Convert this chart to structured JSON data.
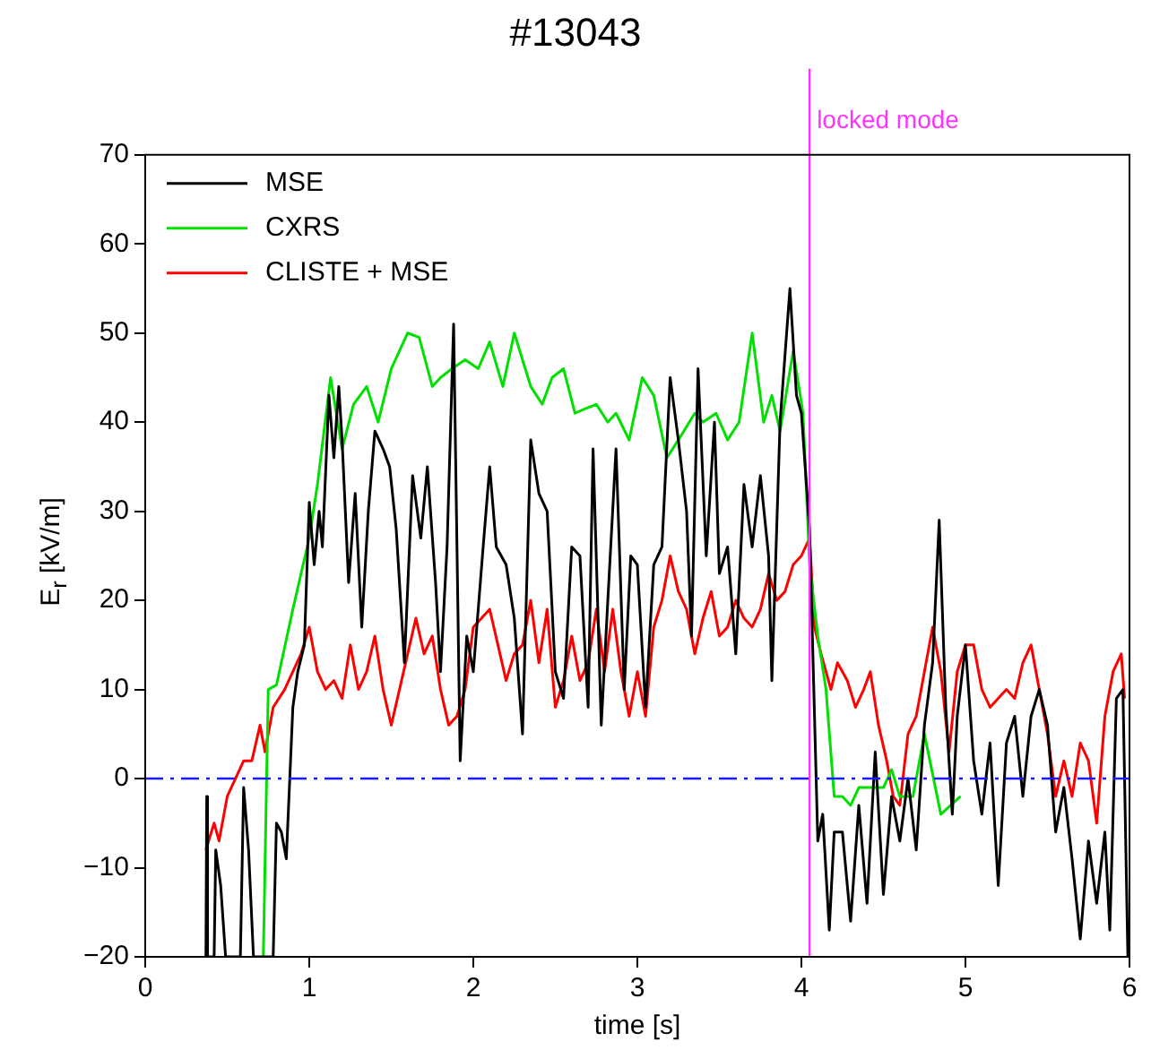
{
  "chart_data": {
    "type": "line",
    "title": "#13043",
    "xlabel": "time [s]",
    "ylabel": "E$_{r}$ [kV/m]",
    "xlim": [
      0,
      6
    ],
    "xticks": [
      0,
      1,
      2,
      3,
      4,
      5,
      6
    ],
    "ylim": [
      -20,
      70
    ],
    "yticks": [
      -20,
      -10,
      0,
      10,
      20,
      30,
      40,
      50,
      60,
      70
    ],
    "grid": false,
    "legend": "top left",
    "marker": "none",
    "line_style": "solid",
    "ref_lines": [
      {
        "axis": "x",
        "value": 4.05,
        "label": "locked mode",
        "color": "#ff33ff",
        "line_style": "solid"
      },
      {
        "axis": "y",
        "value": 0,
        "label": null,
        "color": "#1a1aff",
        "line_style": "dashdot"
      }
    ],
    "series": [
      {
        "name": "MSE",
        "color": "#000000",
        "x": [
          0.37,
          0.375,
          0.38,
          0.42,
          0.43,
          0.46,
          0.49,
          0.58,
          0.6,
          0.63,
          0.66,
          0.7,
          0.78,
          0.8,
          0.83,
          0.86,
          0.9,
          0.93,
          0.97,
          1.0,
          1.03,
          1.06,
          1.08,
          1.12,
          1.15,
          1.18,
          1.2,
          1.24,
          1.28,
          1.32,
          1.36,
          1.4,
          1.45,
          1.49,
          1.53,
          1.58,
          1.63,
          1.68,
          1.72,
          1.77,
          1.8,
          1.84,
          1.88,
          1.92,
          1.96,
          2.0,
          2.06,
          2.1,
          2.14,
          2.2,
          2.25,
          2.3,
          2.35,
          2.4,
          2.45,
          2.5,
          2.55,
          2.6,
          2.65,
          2.7,
          2.73,
          2.78,
          2.82,
          2.87,
          2.92,
          2.96,
          3.0,
          3.05,
          3.1,
          3.15,
          3.2,
          3.25,
          3.3,
          3.33,
          3.37,
          3.42,
          3.47,
          3.5,
          3.55,
          3.6,
          3.65,
          3.7,
          3.75,
          3.8,
          3.82,
          3.87,
          3.93,
          3.97,
          4.0,
          4.05,
          4.1,
          4.13,
          4.17,
          4.2,
          4.25,
          4.3,
          4.35,
          4.4,
          4.45,
          4.5,
          4.55,
          4.6,
          4.65,
          4.7,
          4.75,
          4.8,
          4.84,
          4.88,
          4.92,
          4.95,
          5.0,
          5.05,
          5.1,
          5.15,
          5.2,
          5.25,
          5.3,
          5.35,
          5.4,
          5.45,
          5.5,
          5.55,
          5.6,
          5.65,
          5.7,
          5.75,
          5.8,
          5.85,
          5.88,
          5.92,
          5.96,
          5.99
        ],
        "values": [
          -20,
          -2,
          -20,
          -20,
          -8,
          -12,
          -20,
          -20,
          -1,
          -8,
          -20,
          -20,
          -20,
          -5,
          -6,
          -9,
          8,
          12,
          15,
          31,
          24,
          30,
          26,
          43,
          36,
          44,
          38,
          22,
          32,
          17,
          30,
          39,
          37,
          35,
          28,
          13,
          34,
          27,
          35,
          22,
          12,
          26,
          51,
          2,
          16,
          12,
          26,
          35,
          26,
          24,
          18,
          5,
          38,
          32,
          30,
          12,
          9,
          26,
          25,
          8,
          37,
          6,
          20,
          37,
          10,
          25,
          24,
          8,
          24,
          26,
          45,
          38,
          30,
          16,
          46,
          25,
          40,
          23,
          26,
          14,
          33,
          26,
          34,
          25,
          11,
          40,
          55,
          43,
          41,
          28,
          -7,
          -4,
          -17,
          -6,
          -6,
          -16,
          -3,
          -14,
          3,
          -13,
          -2,
          -7,
          0,
          -8,
          6,
          13,
          29,
          8,
          -4,
          7,
          15,
          2,
          -4,
          4,
          -12,
          4,
          7,
          -2,
          7,
          10,
          6,
          -6,
          -1,
          -9,
          -18,
          -7,
          -14,
          -6,
          -17,
          9,
          10,
          -20
        ]
      },
      {
        "name": "CXRS",
        "color": "#00e000",
        "x": [
          0.72,
          0.75,
          0.8,
          0.9,
          1.0,
          1.05,
          1.13,
          1.2,
          1.27,
          1.35,
          1.42,
          1.5,
          1.6,
          1.67,
          1.75,
          1.8,
          1.87,
          1.95,
          2.03,
          2.1,
          2.18,
          2.25,
          2.35,
          2.42,
          2.48,
          2.55,
          2.62,
          2.68,
          2.75,
          2.82,
          2.87,
          2.95,
          3.03,
          3.1,
          3.18,
          3.25,
          3.35,
          3.4,
          3.48,
          3.55,
          3.62,
          3.7,
          3.77,
          3.82,
          3.87,
          3.95,
          4.01,
          4.05,
          4.1,
          4.15,
          4.2,
          4.25,
          4.3,
          4.35,
          4.4,
          4.5,
          4.55,
          4.6,
          4.68,
          4.75,
          4.85,
          4.97
        ],
        "values": [
          -20,
          10,
          10.5,
          19,
          27,
          33,
          45,
          37,
          42,
          44,
          40,
          46,
          50,
          49.5,
          44,
          45,
          46,
          47,
          46,
          49,
          44,
          50,
          44,
          42,
          45,
          46,
          41,
          41.5,
          42,
          40,
          41,
          38,
          45,
          43,
          36,
          38,
          41,
          40,
          41,
          38,
          40,
          50,
          40,
          43,
          39,
          48,
          41,
          24,
          16,
          10,
          -2,
          -2,
          -3,
          -1,
          -1,
          -1,
          1,
          -2,
          -2,
          5,
          -4,
          -2
        ]
      },
      {
        "name": "CLISTE + MSE",
        "color": "#ff0000",
        "x": [
          0.37,
          0.42,
          0.45,
          0.5,
          0.55,
          0.6,
          0.65,
          0.7,
          0.73,
          0.78,
          0.85,
          0.9,
          0.95,
          1.0,
          1.05,
          1.1,
          1.15,
          1.2,
          1.25,
          1.3,
          1.35,
          1.4,
          1.45,
          1.5,
          1.55,
          1.6,
          1.65,
          1.7,
          1.75,
          1.8,
          1.85,
          1.9,
          1.95,
          2.0,
          2.05,
          2.1,
          2.15,
          2.2,
          2.25,
          2.3,
          2.35,
          2.4,
          2.45,
          2.5,
          2.55,
          2.6,
          2.65,
          2.7,
          2.75,
          2.8,
          2.85,
          2.9,
          2.95,
          3.0,
          3.05,
          3.1,
          3.15,
          3.2,
          3.25,
          3.3,
          3.35,
          3.4,
          3.45,
          3.5,
          3.55,
          3.6,
          3.65,
          3.7,
          3.75,
          3.8,
          3.85,
          3.9,
          3.95,
          4.0,
          4.05,
          4.08,
          4.12,
          4.18,
          4.22,
          4.28,
          4.33,
          4.38,
          4.42,
          4.47,
          4.52,
          4.56,
          4.6,
          4.65,
          4.7,
          4.75,
          4.8,
          4.85,
          4.9,
          4.95,
          5.0,
          5.05,
          5.1,
          5.15,
          5.2,
          5.25,
          5.3,
          5.35,
          5.4,
          5.45,
          5.5,
          5.55,
          5.6,
          5.65,
          5.7,
          5.75,
          5.8,
          5.85,
          5.9,
          5.95,
          5.97
        ],
        "values": [
          -8,
          -5,
          -7,
          -2,
          0,
          2,
          2,
          6,
          3,
          8,
          10,
          12,
          14,
          17,
          12,
          10,
          11,
          9,
          15,
          10,
          12,
          16,
          10,
          6,
          10,
          14,
          18,
          14,
          16,
          10,
          6,
          7,
          10,
          17,
          18,
          19,
          15,
          11,
          14,
          15,
          20,
          13,
          19,
          8,
          11,
          16,
          11,
          13,
          19,
          12,
          19,
          12,
          7,
          12,
          7,
          17,
          20,
          25,
          21,
          19,
          14,
          18,
          21,
          16,
          17,
          20,
          18,
          17,
          19,
          23,
          20,
          21,
          24,
          25,
          27,
          17,
          14,
          10,
          13,
          11,
          8,
          10,
          12,
          6,
          2,
          -2,
          -3,
          5,
          7,
          12,
          17,
          12,
          3,
          12,
          15,
          15,
          10,
          8,
          9,
          10,
          9,
          13,
          15,
          10,
          5,
          -2,
          2,
          -2,
          4,
          2,
          -5,
          7,
          12,
          14,
          9
        ]
      }
    ]
  }
}
